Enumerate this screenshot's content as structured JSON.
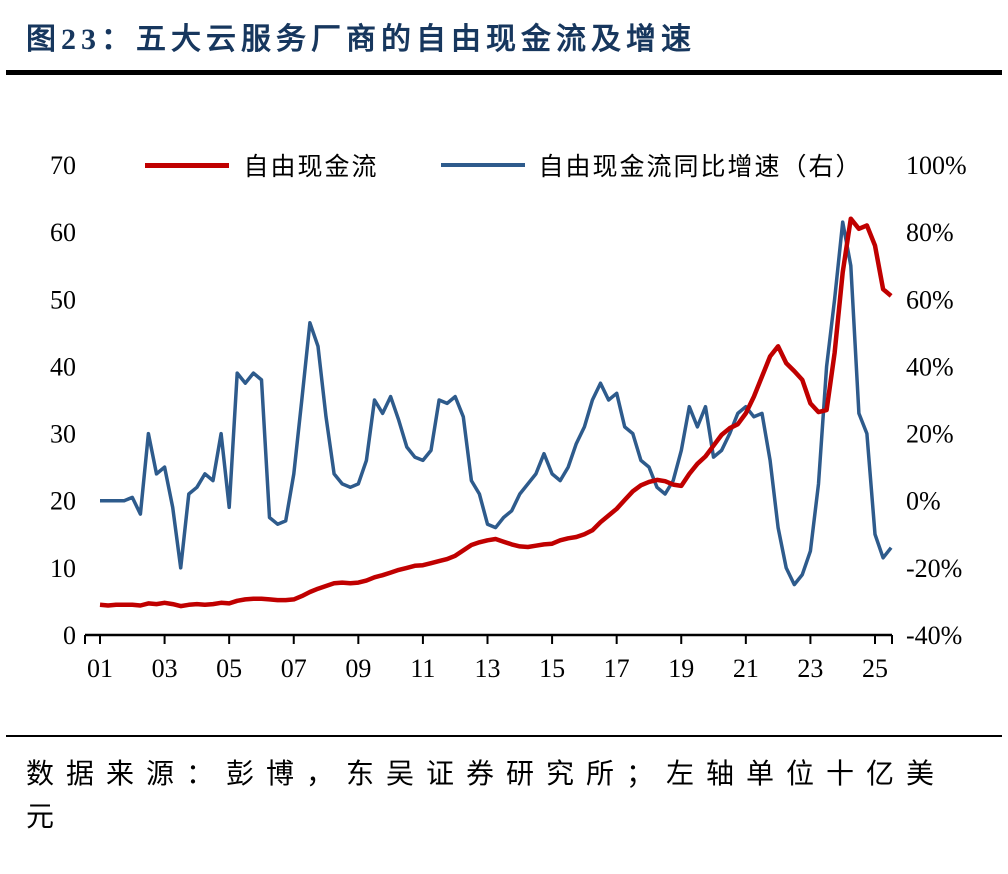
{
  "title": "图23：五大云服务厂商的自由现金流及增速",
  "source_note": "数据来源：彭博，东吴证券研究所；左轴单位十亿美元",
  "colors": {
    "title": "#17375E",
    "rule": "#000000",
    "axis": "#000000",
    "fcf_line": "#C00000",
    "growth_line": "#2E5B8C"
  },
  "chart_data": {
    "type": "line",
    "title": "五大云服务厂商的自由现金流及增速",
    "legend_position": "top",
    "grid": false,
    "x_start": 2001.0,
    "x_step": 0.25,
    "x_range": [
      2000.55,
      2025.55
    ],
    "x_tick_years": [
      2001,
      2003,
      2005,
      2007,
      2009,
      2011,
      2013,
      2015,
      2017,
      2019,
      2021,
      2023,
      2025
    ],
    "x_tick_labels": [
      "01",
      "03",
      "05",
      "07",
      "09",
      "11",
      "13",
      "15",
      "17",
      "19",
      "21",
      "23",
      "25"
    ],
    "left_axis": {
      "range": [
        0,
        70
      ],
      "ticks": [
        0,
        10,
        20,
        30,
        40,
        50,
        60,
        70
      ],
      "tick_labels": [
        "0",
        "10",
        "20",
        "30",
        "40",
        "50",
        "60",
        "70"
      ],
      "unit": "十亿美元"
    },
    "right_axis": {
      "range": [
        -40,
        100
      ],
      "ticks": [
        -40,
        -20,
        0,
        20,
        40,
        60,
        80,
        100
      ],
      "tick_labels": [
        "-40%",
        "-20%",
        "0%",
        "20%",
        "40%",
        "60%",
        "80%",
        "100%"
      ]
    },
    "series": [
      {
        "name": "自由现金流",
        "axis": "left",
        "color": "#C00000",
        "values": [
          4.5,
          4.4,
          4.5,
          4.5,
          4.5,
          4.4,
          4.7,
          4.6,
          4.8,
          4.6,
          4.3,
          4.5,
          4.6,
          4.5,
          4.6,
          4.8,
          4.7,
          5.1,
          5.3,
          5.4,
          5.4,
          5.3,
          5.2,
          5.2,
          5.3,
          5.8,
          6.4,
          6.9,
          7.3,
          7.7,
          7.8,
          7.7,
          7.8,
          8.1,
          8.6,
          8.9,
          9.3,
          9.7,
          10.0,
          10.3,
          10.4,
          10.7,
          11.0,
          11.3,
          11.8,
          12.6,
          13.4,
          13.8,
          14.1,
          14.3,
          13.9,
          13.5,
          13.2,
          13.1,
          13.3,
          13.5,
          13.6,
          14.1,
          14.4,
          14.6,
          15.0,
          15.6,
          16.8,
          17.8,
          18.8,
          20.1,
          21.4,
          22.3,
          22.8,
          23.1,
          22.9,
          22.4,
          22.2,
          24.0,
          25.5,
          26.6,
          28.2,
          29.8,
          30.8,
          31.4,
          33.0,
          35.5,
          38.5,
          41.5,
          43.0,
          40.5,
          39.3,
          38.0,
          34.5,
          33.2,
          33.5,
          42.0,
          54.0,
          62.0,
          60.5,
          61.0,
          58.0,
          51.5,
          50.5
        ]
      },
      {
        "name": "自由现金流同比增速（右）",
        "axis": "right",
        "color": "#2E5B8C",
        "values": [
          0,
          0,
          0,
          0,
          1,
          -4,
          20,
          8,
          10,
          -2,
          -20,
          2,
          4,
          8,
          6,
          20,
          -2,
          38,
          35,
          38,
          36,
          -5,
          -7,
          -6,
          8,
          30,
          53,
          46,
          25,
          8,
          5,
          4,
          5,
          12,
          30,
          26,
          31,
          24,
          16,
          13,
          12,
          15,
          30,
          29,
          31,
          25,
          6,
          2,
          -7,
          -8,
          -5,
          -3,
          2,
          5,
          8,
          14,
          8,
          6,
          10,
          17,
          22,
          30,
          35,
          30,
          32,
          22,
          20,
          12,
          10,
          4,
          2,
          6,
          15,
          28,
          22,
          28,
          13,
          15,
          20,
          26,
          28,
          25,
          26,
          12,
          -8,
          -20,
          -25,
          -22,
          -15,
          5,
          40,
          60,
          83,
          70,
          26,
          20,
          -10,
          -17,
          -14
        ]
      }
    ]
  }
}
